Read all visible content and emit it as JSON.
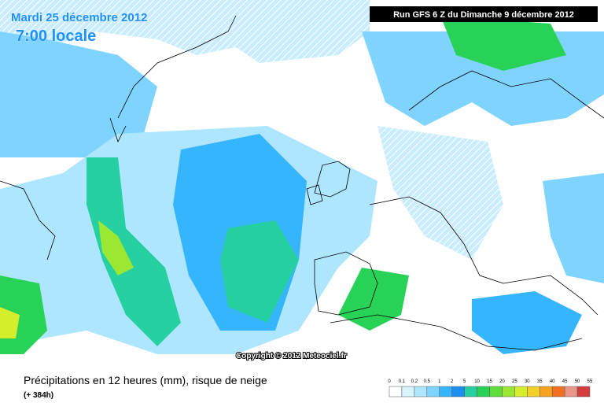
{
  "header": {
    "date": "Mardi 25 décembre 2012",
    "time": "7:00 locale",
    "run": "Run GFS 6 Z du Dimanche 9 décembre 2012"
  },
  "copyright": "Copyright © 2012 Meteociel.fr",
  "footer": {
    "title": "Précipitations en 12 heures (mm), risque de neige",
    "subtitle": "(+ 384h)"
  },
  "legend": {
    "labels": [
      0,
      0.1,
      0.2,
      0.5,
      1,
      2,
      5,
      10,
      15,
      20,
      25,
      30,
      35,
      40,
      45,
      50,
      55
    ],
    "colors": [
      "#ffffff",
      "#d9f3ff",
      "#aee6ff",
      "#7fd4ff",
      "#36b5ff",
      "#1c8ef0",
      "#26d0a0",
      "#28d257",
      "#5ede3c",
      "#9be832",
      "#d4ee2c",
      "#f2d02a",
      "#f7a221",
      "#f26f22",
      "#e8978a",
      "#d53c3c"
    ]
  }
}
